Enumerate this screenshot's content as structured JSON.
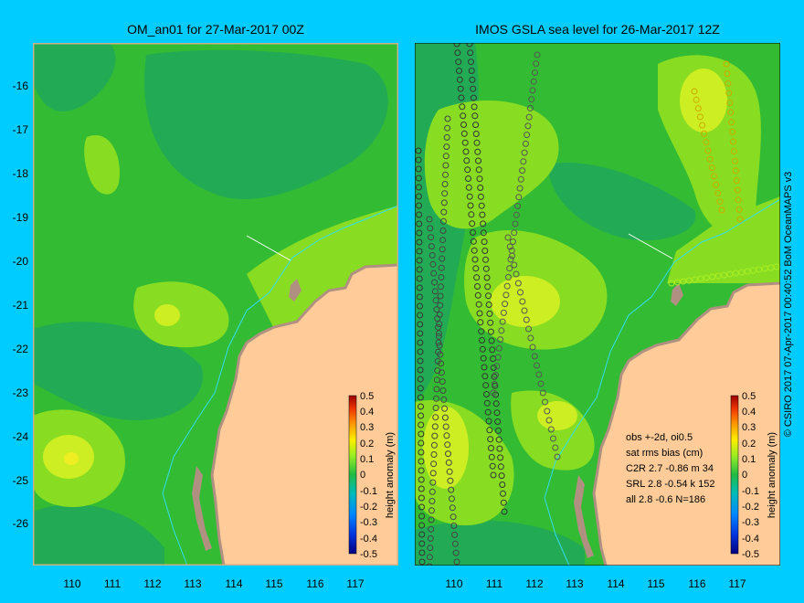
{
  "left_panel": {
    "title": "OM_an01 for 27-Mar-2017 00Z"
  },
  "right_panel": {
    "title": "IMOS GSLA sea level  for 26-Mar-2017 12Z"
  },
  "axes": {
    "lat_ticks": [
      "-16",
      "-17",
      "-18",
      "-19",
      "-20",
      "-21",
      "-22",
      "-23",
      "-24",
      "-25",
      "-26"
    ],
    "lon_ticks": [
      "110",
      "111",
      "112",
      "113",
      "114",
      "115",
      "116",
      "117"
    ]
  },
  "colorbar": {
    "label": "height anomaly (m)",
    "ticks": [
      "0.5",
      "0.4",
      "0.3",
      "0.2",
      "0.1",
      "0",
      "-0.1",
      "-0.2",
      "-0.3",
      "-0.4",
      "-0.5"
    ]
  },
  "stats": {
    "line1": "obs +-2d, oi0.5",
    "line2": "sat rms bias (cm)",
    "line3": "C2R   2.7 -0.86 m 34",
    "line4": "SRL   2.8 -0.54 k 152",
    "line5": "all   2.8 -0.6 N=186"
  },
  "credit": "© CSIRO 2017   07-Apr-2017 00:40:52 BoM OceanMAPS v3",
  "colors": {
    "background": "#00ccff",
    "land": "#ffcc99",
    "coast": "#b09080",
    "ocean_base": "#33bb33",
    "ocean_dark": "#229966",
    "ocean_light": "#88dd22",
    "ocean_yellow": "#ccee22"
  }
}
